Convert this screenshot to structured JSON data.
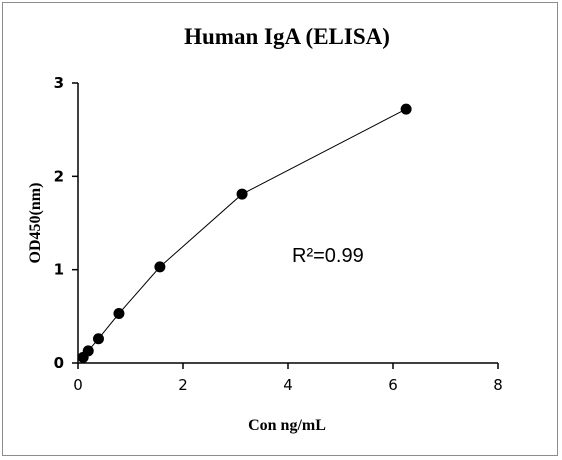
{
  "chart_data": {
    "type": "scatter",
    "title": "Human IgA (ELISA)",
    "xlabel": "Con ng/mL",
    "ylabel": "OD450(nm)",
    "xlim": [
      0,
      8
    ],
    "ylim": [
      0,
      3
    ],
    "x_ticks": [
      "0",
      "2",
      "4",
      "6",
      "8"
    ],
    "y_ticks": [
      "0",
      "1",
      "2",
      "3"
    ],
    "grid": false,
    "legend": "none",
    "series": [
      {
        "x": [
          0.098,
          0.195,
          0.39,
          0.78,
          1.56,
          3.125,
          6.25
        ],
        "y": [
          0.06,
          0.13,
          0.26,
          0.53,
          1.03,
          1.81,
          2.72
        ],
        "line": true
      }
    ],
    "annotation": "R²=0.99",
    "colors": {
      "marker": "#000000",
      "line": "#000000"
    }
  }
}
